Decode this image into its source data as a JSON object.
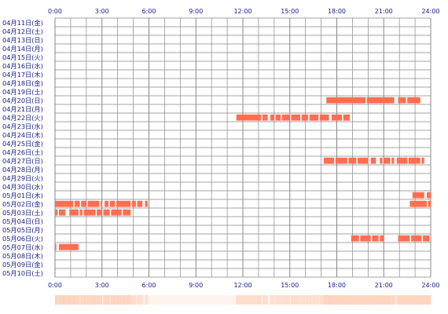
{
  "chart_data": {
    "type": "timeline",
    "title": "",
    "x_range": [
      "0:00",
      "24:00"
    ],
    "x_tick_labels": [
      "0:00",
      "3:00",
      "6:00",
      "9:00",
      "12:00",
      "15:00",
      "18:00",
      "21:00",
      "24:00"
    ],
    "grid": true,
    "grid_minor_step_minutes": 60,
    "colors": {
      "bar": "#ff6e4f",
      "grid": "#888888",
      "label_text": "#1a1a8a",
      "density_strip": "#ffcfb8"
    },
    "rows": [
      {
        "label": "04月11日(金)",
        "intervals": []
      },
      {
        "label": "04月12日(土)",
        "intervals": []
      },
      {
        "label": "04月13日(日)",
        "intervals": []
      },
      {
        "label": "04月14日(月)",
        "intervals": []
      },
      {
        "label": "04月15日(火)",
        "intervals": []
      },
      {
        "label": "04月16日(水)",
        "intervals": []
      },
      {
        "label": "04月17日(木)",
        "intervals": []
      },
      {
        "label": "04月18日(金)",
        "intervals": []
      },
      {
        "label": "04月19日(土)",
        "intervals": []
      },
      {
        "label": "04月20日(日)",
        "intervals": [
          [
            "17:20",
            "19:50"
          ],
          [
            "19:55",
            "21:40"
          ],
          [
            "21:55",
            "22:25"
          ],
          [
            "22:30",
            "23:20"
          ]
        ]
      },
      {
        "label": "04月21日(月)",
        "intervals": []
      },
      {
        "label": "04月22日(火)",
        "intervals": [
          [
            "11:35",
            "13:10"
          ],
          [
            "13:15",
            "13:35"
          ],
          [
            "13:45",
            "14:00"
          ],
          [
            "14:05",
            "14:25"
          ],
          [
            "14:30",
            "15:00"
          ],
          [
            "15:05",
            "15:40"
          ],
          [
            "15:45",
            "16:10"
          ],
          [
            "16:15",
            "16:50"
          ],
          [
            "16:55",
            "17:30"
          ],
          [
            "17:40",
            "18:20"
          ],
          [
            "18:25",
            "18:50"
          ]
        ]
      },
      {
        "label": "04月23日(水)",
        "intervals": []
      },
      {
        "label": "04月24日(木)",
        "intervals": []
      },
      {
        "label": "04月25日(金)",
        "intervals": []
      },
      {
        "label": "04月26日(土)",
        "intervals": []
      },
      {
        "label": "04月27日(日)",
        "intervals": [
          [
            "17:10",
            "17:50"
          ],
          [
            "17:55",
            "18:40"
          ],
          [
            "18:45",
            "19:15"
          ],
          [
            "19:20",
            "20:00"
          ],
          [
            "20:10",
            "20:30"
          ],
          [
            "20:45",
            "20:55"
          ],
          [
            "21:00",
            "21:25"
          ],
          [
            "21:30",
            "21:40"
          ],
          [
            "21:50",
            "22:30"
          ],
          [
            "22:35",
            "23:20"
          ],
          [
            "23:25",
            "23:35"
          ]
        ]
      },
      {
        "label": "04月28日(月)",
        "intervals": []
      },
      {
        "label": "04月29日(火)",
        "intervals": []
      },
      {
        "label": "04月30日(水)",
        "intervals": []
      },
      {
        "label": "05月01日(木)",
        "intervals": [
          [
            "22:50",
            "23:35"
          ],
          [
            "23:45",
            "24:00"
          ]
        ]
      },
      {
        "label": "05月02日(金)",
        "intervals": [
          [
            "0:00",
            "1:10"
          ],
          [
            "1:15",
            "1:35"
          ],
          [
            "1:40",
            "2:00"
          ],
          [
            "2:05",
            "2:50"
          ],
          [
            "2:55",
            "3:00"
          ],
          [
            "3:10",
            "3:25"
          ],
          [
            "3:30",
            "3:50"
          ],
          [
            "3:55",
            "4:50"
          ],
          [
            "4:55",
            "5:10"
          ],
          [
            "5:15",
            "5:35"
          ],
          [
            "5:45",
            "5:55"
          ],
          [
            "22:40",
            "23:45"
          ],
          [
            "23:50",
            "24:00"
          ]
        ]
      },
      {
        "label": "05月03日(土)",
        "intervals": [
          [
            "0:00",
            "0:10"
          ],
          [
            "0:15",
            "0:40"
          ],
          [
            "0:55",
            "1:30"
          ],
          [
            "1:35",
            "1:45"
          ],
          [
            "1:50",
            "2:35"
          ],
          [
            "2:40",
            "3:00"
          ],
          [
            "3:05",
            "3:30"
          ],
          [
            "3:35",
            "4:15"
          ],
          [
            "4:20",
            "4:50"
          ]
        ]
      },
      {
        "label": "05月04日(日)",
        "intervals": []
      },
      {
        "label": "05月05日(月)",
        "intervals": []
      },
      {
        "label": "05月06日(火)",
        "intervals": [
          [
            "18:55",
            "19:25"
          ],
          [
            "19:30",
            "20:10"
          ],
          [
            "20:15",
            "20:40"
          ],
          [
            "20:45",
            "21:00"
          ],
          [
            "21:55",
            "22:40"
          ],
          [
            "22:45",
            "23:25"
          ],
          [
            "23:30",
            "23:55"
          ]
        ]
      },
      {
        "label": "05月07日(水)",
        "intervals": [
          [
            "0:00",
            "0:05"
          ],
          [
            "0:15",
            "1:30"
          ]
        ]
      },
      {
        "label": "05月08日(木)",
        "intervals": []
      },
      {
        "label": "05月09日(金)",
        "intervals": []
      },
      {
        "label": "05月10日(土)",
        "intervals": []
      }
    ]
  }
}
